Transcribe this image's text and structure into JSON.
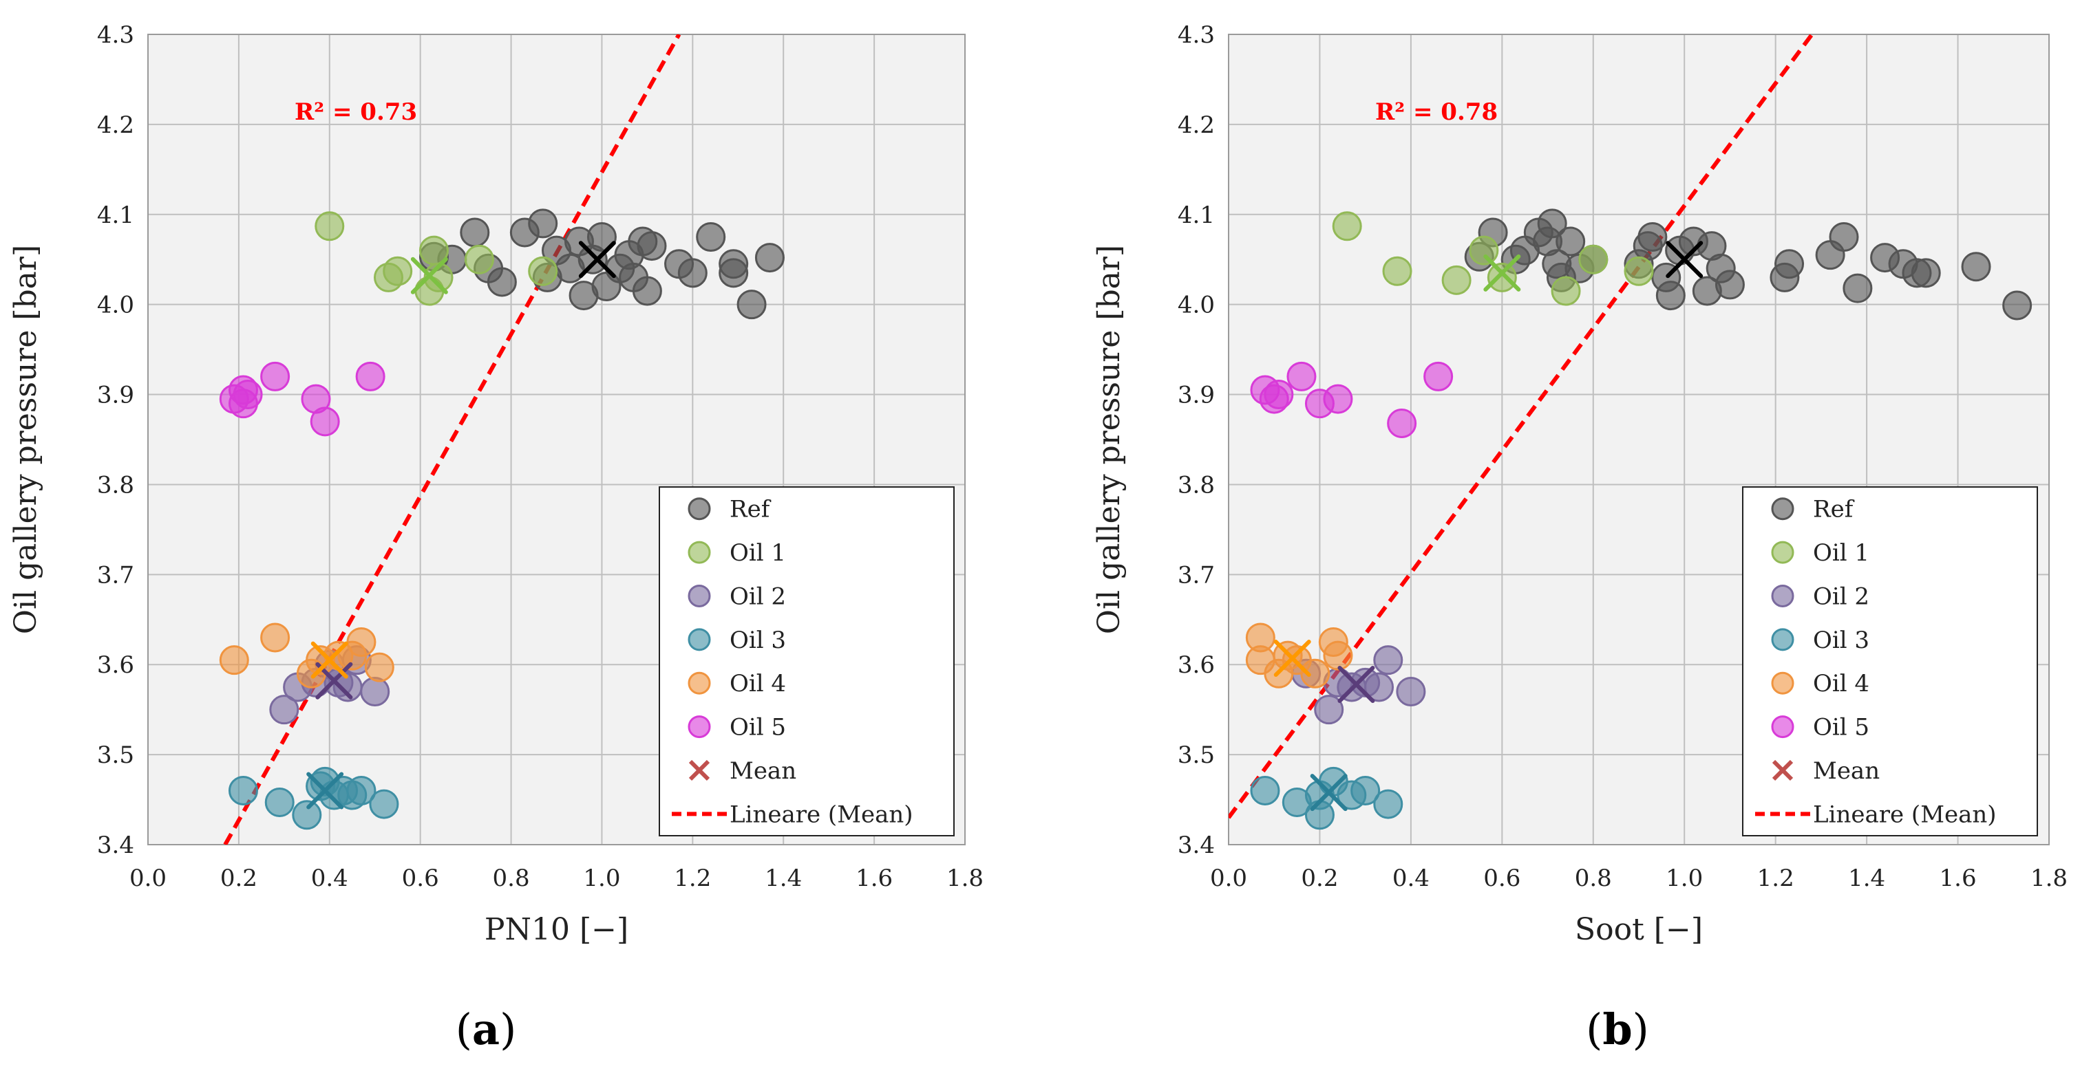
{
  "figure": {
    "panel_labels": [
      "(a)",
      "(b)"
    ]
  },
  "colors": {
    "Ref": "#555555",
    "Oil 1": "#92b956",
    "Oil 2": "#7a6a9e",
    "Oil 3": "#3f8fa4",
    "Oil 4": "#f0943f",
    "Oil 5": "#d83bd8",
    "Mean": "#c0504d",
    "Fit": "#ff0000",
    "MeanRef": "#000000",
    "MeanOil1": "#7dc142",
    "MeanOil2": "#5a3d7a",
    "MeanOil3": "#2a7f96",
    "MeanOil4": "#ff9900"
  },
  "chart_data": [
    {
      "type": "scatter",
      "panel": "(a)",
      "xlabel": "PN10 [−]",
      "ylabel": "Oil gallery pressure [bar]",
      "xlim": [
        0,
        1.8
      ],
      "ylim": [
        3.4,
        4.3
      ],
      "xticks": [
        "0.0",
        "0.2",
        "0.4",
        "0.6",
        "0.8",
        "1.0",
        "1.2",
        "1.4",
        "1.6",
        "1.8"
      ],
      "yticks": [
        "3.4",
        "3.5",
        "3.6",
        "3.7",
        "3.8",
        "3.9",
        "4.0",
        "4.1",
        "4.2",
        "4.3"
      ],
      "grid": true,
      "legend_position": "bottom-right",
      "legend": [
        "Ref",
        "Oil 1",
        "Oil 2",
        "Oil 3",
        "Oil 4",
        "Oil 5",
        "Mean",
        "Lineare (Mean)"
      ],
      "annotation": "R² = 0.73",
      "trendline": {
        "name": "Lineare (Mean)",
        "from": [
          0.17,
          3.4
        ],
        "to": [
          1.17,
          4.3
        ]
      },
      "series": [
        {
          "name": "Ref",
          "points": [
            [
              0.63,
              4.053
            ],
            [
              0.67,
              4.05
            ],
            [
              0.72,
              4.08
            ],
            [
              0.75,
              4.04
            ],
            [
              0.78,
              4.025
            ],
            [
              0.83,
              4.08
            ],
            [
              0.87,
              4.09
            ],
            [
              0.88,
              4.03
            ],
            [
              0.9,
              4.06
            ],
            [
              0.93,
              4.04
            ],
            [
              0.95,
              4.07
            ],
            [
              0.96,
              4.01
            ],
            [
              0.98,
              4.05
            ],
            [
              1.0,
              4.075
            ],
            [
              1.01,
              4.02
            ],
            [
              1.04,
              4.04
            ],
            [
              1.06,
              4.055
            ],
            [
              1.07,
              4.03
            ],
            [
              1.09,
              4.07
            ],
            [
              1.1,
              4.015
            ],
            [
              1.11,
              4.065
            ],
            [
              1.17,
              4.045
            ],
            [
              1.2,
              4.035
            ],
            [
              1.24,
              4.075
            ],
            [
              1.29,
              4.045
            ],
            [
              1.29,
              4.035
            ],
            [
              1.33,
              4.0
            ],
            [
              1.37,
              4.052
            ]
          ]
        },
        {
          "name": "Oil 1",
          "points": [
            [
              0.4,
              4.087
            ],
            [
              0.53,
              4.03
            ],
            [
              0.55,
              4.037
            ],
            [
              0.62,
              4.015
            ],
            [
              0.63,
              4.06
            ],
            [
              0.64,
              4.03
            ],
            [
              0.73,
              4.05
            ],
            [
              0.87,
              4.037
            ]
          ]
        },
        {
          "name": "Oil 2",
          "points": [
            [
              0.3,
              3.55
            ],
            [
              0.33,
              3.575
            ],
            [
              0.37,
              3.58
            ],
            [
              0.4,
              3.6
            ],
            [
              0.42,
              3.58
            ],
            [
              0.44,
              3.575
            ],
            [
              0.46,
              3.605
            ],
            [
              0.5,
              3.57
            ]
          ]
        },
        {
          "name": "Oil 3",
          "points": [
            [
              0.21,
              3.46
            ],
            [
              0.29,
              3.447
            ],
            [
              0.35,
              3.433
            ],
            [
              0.38,
              3.465
            ],
            [
              0.39,
              3.47
            ],
            [
              0.41,
              3.455
            ],
            [
              0.43,
              3.46
            ],
            [
              0.45,
              3.455
            ],
            [
              0.47,
              3.46
            ],
            [
              0.52,
              3.445
            ]
          ]
        },
        {
          "name": "Oil 4",
          "points": [
            [
              0.19,
              3.605
            ],
            [
              0.28,
              3.63
            ],
            [
              0.36,
              3.59
            ],
            [
              0.38,
              3.605
            ],
            [
              0.42,
              3.61
            ],
            [
              0.45,
              3.61
            ],
            [
              0.47,
              3.625
            ],
            [
              0.51,
              3.597
            ]
          ]
        },
        {
          "name": "Oil 5",
          "points": [
            [
              0.19,
              3.895
            ],
            [
              0.21,
              3.89
            ],
            [
              0.21,
              3.905
            ],
            [
              0.22,
              3.9
            ],
            [
              0.28,
              3.92
            ],
            [
              0.37,
              3.895
            ],
            [
              0.39,
              3.87
            ],
            [
              0.49,
              3.92
            ]
          ]
        }
      ],
      "means": [
        {
          "name": "Ref",
          "point": [
            0.99,
            4.05
          ]
        },
        {
          "name": "Oil 1",
          "point": [
            0.62,
            4.032
          ]
        },
        {
          "name": "Oil 2",
          "point": [
            0.41,
            3.582
          ]
        },
        {
          "name": "Oil 3",
          "point": [
            0.39,
            3.46
          ]
        },
        {
          "name": "Oil 4",
          "point": [
            0.4,
            3.605
          ]
        }
      ]
    },
    {
      "type": "scatter",
      "panel": "(b)",
      "xlabel": "Soot [−]",
      "ylabel": "Oil gallery pressure [bar]",
      "xlim": [
        0,
        1.8
      ],
      "ylim": [
        3.4,
        4.3
      ],
      "xticks": [
        "0.0",
        "0.2",
        "0.4",
        "0.6",
        "0.8",
        "1.0",
        "1.2",
        "1.4",
        "1.6",
        "1.8"
      ],
      "yticks": [
        "3.4",
        "3.5",
        "3.6",
        "3.7",
        "3.8",
        "3.9",
        "4.0",
        "4.1",
        "4.2",
        "4.3"
      ],
      "grid": true,
      "legend_position": "bottom-right",
      "legend": [
        "Ref",
        "Oil 1",
        "Oil 2",
        "Oil 3",
        "Oil 4",
        "Oil 5",
        "Mean",
        "Lineare (Mean)"
      ],
      "annotation": "R² = 0.78",
      "trendline": {
        "name": "Lineare (Mean)",
        "from": [
          0.0,
          3.43
        ],
        "to": [
          1.28,
          4.3
        ]
      },
      "series": [
        {
          "name": "Ref",
          "points": [
            [
              0.55,
              4.053
            ],
            [
              0.58,
              4.08
            ],
            [
              0.63,
              4.05
            ],
            [
              0.65,
              4.06
            ],
            [
              0.68,
              4.08
            ],
            [
              0.7,
              4.07
            ],
            [
              0.71,
              4.09
            ],
            [
              0.72,
              4.045
            ],
            [
              0.73,
              4.03
            ],
            [
              0.75,
              4.07
            ],
            [
              0.77,
              4.04
            ],
            [
              0.8,
              4.05
            ],
            [
              0.9,
              4.045
            ],
            [
              0.92,
              4.065
            ],
            [
              0.93,
              4.075
            ],
            [
              0.96,
              4.03
            ],
            [
              0.97,
              4.01
            ],
            [
              0.99,
              4.06
            ],
            [
              1.02,
              4.07
            ],
            [
              1.05,
              4.015
            ],
            [
              1.06,
              4.065
            ],
            [
              1.08,
              4.04
            ],
            [
              1.1,
              4.022
            ],
            [
              1.22,
              4.03
            ],
            [
              1.23,
              4.045
            ],
            [
              1.32,
              4.055
            ],
            [
              1.35,
              4.075
            ],
            [
              1.38,
              4.018
            ],
            [
              1.44,
              4.052
            ],
            [
              1.48,
              4.045
            ],
            [
              1.51,
              4.035
            ],
            [
              1.53,
              4.035
            ],
            [
              1.64,
              4.042
            ],
            [
              1.73,
              3.999
            ]
          ]
        },
        {
          "name": "Oil 1",
          "points": [
            [
              0.26,
              4.087
            ],
            [
              0.37,
              4.037
            ],
            [
              0.5,
              4.027
            ],
            [
              0.56,
              4.06
            ],
            [
              0.6,
              4.03
            ],
            [
              0.74,
              4.015
            ],
            [
              0.8,
              4.05
            ],
            [
              0.9,
              4.037
            ]
          ]
        },
        {
          "name": "Oil 2",
          "points": [
            [
              0.17,
              3.59
            ],
            [
              0.22,
              3.55
            ],
            [
              0.24,
              3.58
            ],
            [
              0.27,
              3.575
            ],
            [
              0.3,
              3.58
            ],
            [
              0.33,
              3.575
            ],
            [
              0.35,
              3.605
            ],
            [
              0.4,
              3.57
            ]
          ]
        },
        {
          "name": "Oil 3",
          "points": [
            [
              0.08,
              3.46
            ],
            [
              0.15,
              3.447
            ],
            [
              0.2,
              3.433
            ],
            [
              0.2,
              3.455
            ],
            [
              0.23,
              3.47
            ],
            [
              0.27,
              3.455
            ],
            [
              0.3,
              3.46
            ],
            [
              0.35,
              3.445
            ]
          ]
        },
        {
          "name": "Oil 4",
          "points": [
            [
              0.07,
              3.63
            ],
            [
              0.07,
              3.605
            ],
            [
              0.11,
              3.59
            ],
            [
              0.13,
              3.61
            ],
            [
              0.15,
              3.605
            ],
            [
              0.19,
              3.59
            ],
            [
              0.23,
              3.625
            ],
            [
              0.24,
              3.61
            ]
          ]
        },
        {
          "name": "Oil 5",
          "points": [
            [
              0.08,
              3.905
            ],
            [
              0.1,
              3.895
            ],
            [
              0.11,
              3.9
            ],
            [
              0.16,
              3.92
            ],
            [
              0.2,
              3.89
            ],
            [
              0.24,
              3.895
            ],
            [
              0.38,
              3.868
            ],
            [
              0.46,
              3.92
            ]
          ]
        }
      ],
      "means": [
        {
          "name": "Ref",
          "point": [
            1.0,
            4.05
          ]
        },
        {
          "name": "Oil 1",
          "point": [
            0.6,
            4.035
          ]
        },
        {
          "name": "Oil 2",
          "point": [
            0.28,
            3.578
          ]
        },
        {
          "name": "Oil 3",
          "point": [
            0.22,
            3.458
          ]
        },
        {
          "name": "Oil 4",
          "point": [
            0.14,
            3.607
          ]
        }
      ]
    }
  ]
}
